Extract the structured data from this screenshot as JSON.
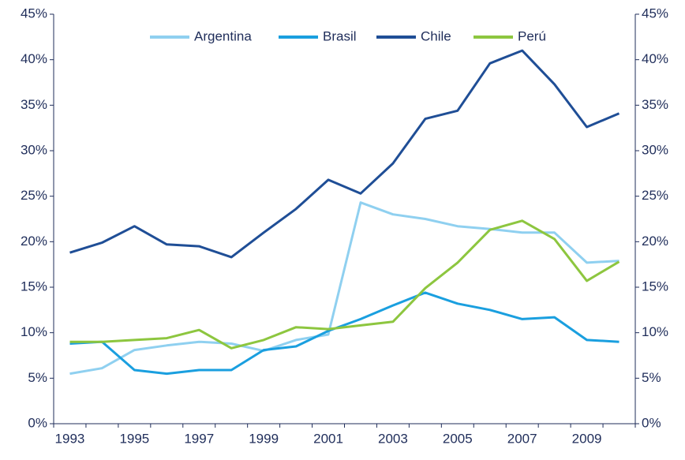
{
  "chart_data": {
    "type": "line",
    "categories": [
      "1993",
      null,
      "1995",
      null,
      "1997",
      null,
      "1999",
      null,
      "2001",
      null,
      "2003",
      null,
      "2005",
      null,
      "2007",
      null,
      "2009",
      null
    ],
    "series": [
      {
        "name": "Argentina",
        "color": "#8fd0f0",
        "values": [
          5.5,
          6.1,
          8.1,
          8.6,
          9.0,
          8.8,
          8.0,
          9.2,
          9.8,
          24.3,
          23.0,
          22.5,
          21.7,
          21.4,
          21.0,
          21.0,
          17.7,
          17.9
        ]
      },
      {
        "name": "Brasil",
        "color": "#1a9fdf",
        "values": [
          8.8,
          9.0,
          5.9,
          5.5,
          5.9,
          5.9,
          8.1,
          8.5,
          10.2,
          11.5,
          13.0,
          14.4,
          13.2,
          12.5,
          11.5,
          11.7,
          9.2,
          9.0
        ]
      },
      {
        "name": "Chile",
        "color": "#1f4e96",
        "values": [
          18.8,
          19.9,
          21.7,
          19.7,
          19.5,
          18.3,
          21.0,
          23.6,
          26.8,
          25.3,
          28.6,
          33.5,
          34.4,
          39.6,
          41.0,
          37.3,
          32.6,
          34.1
        ]
      },
      {
        "name": "Perú",
        "color": "#8dc63f",
        "values": [
          9.0,
          9.0,
          9.2,
          9.4,
          10.3,
          8.3,
          9.2,
          10.6,
          10.4,
          10.8,
          11.2,
          14.9,
          17.7,
          21.3,
          22.3,
          20.3,
          15.7,
          17.8
        ]
      }
    ],
    "ylim": [
      0,
      45
    ],
    "yticks": [
      {
        "value": 0,
        "label": "0%"
      },
      {
        "value": 5,
        "label": "5%"
      },
      {
        "value": 10,
        "label": "10%"
      },
      {
        "value": 15,
        "label": "15%"
      },
      {
        "value": 20,
        "label": "20%"
      },
      {
        "value": 25,
        "label": "25%"
      },
      {
        "value": 30,
        "label": "30%"
      },
      {
        "value": 35,
        "label": "35%"
      },
      {
        "value": 40,
        "label": "40%"
      },
      {
        "value": 45,
        "label": "45%"
      }
    ],
    "y2lim": [
      0,
      45
    ],
    "y2ticks": [
      {
        "value": 0,
        "label": "0%"
      },
      {
        "value": 5,
        "label": "5%"
      },
      {
        "value": 10,
        "label": "10%"
      },
      {
        "value": 15,
        "label": "15%"
      },
      {
        "value": 20,
        "label": "20%"
      },
      {
        "value": 25,
        "label": "25%"
      },
      {
        "value": 30,
        "label": "30%"
      },
      {
        "value": 35,
        "label": "35%"
      },
      {
        "value": 40,
        "label": "40%"
      },
      {
        "value": 45,
        "label": "45%"
      }
    ],
    "legend": "top"
  }
}
